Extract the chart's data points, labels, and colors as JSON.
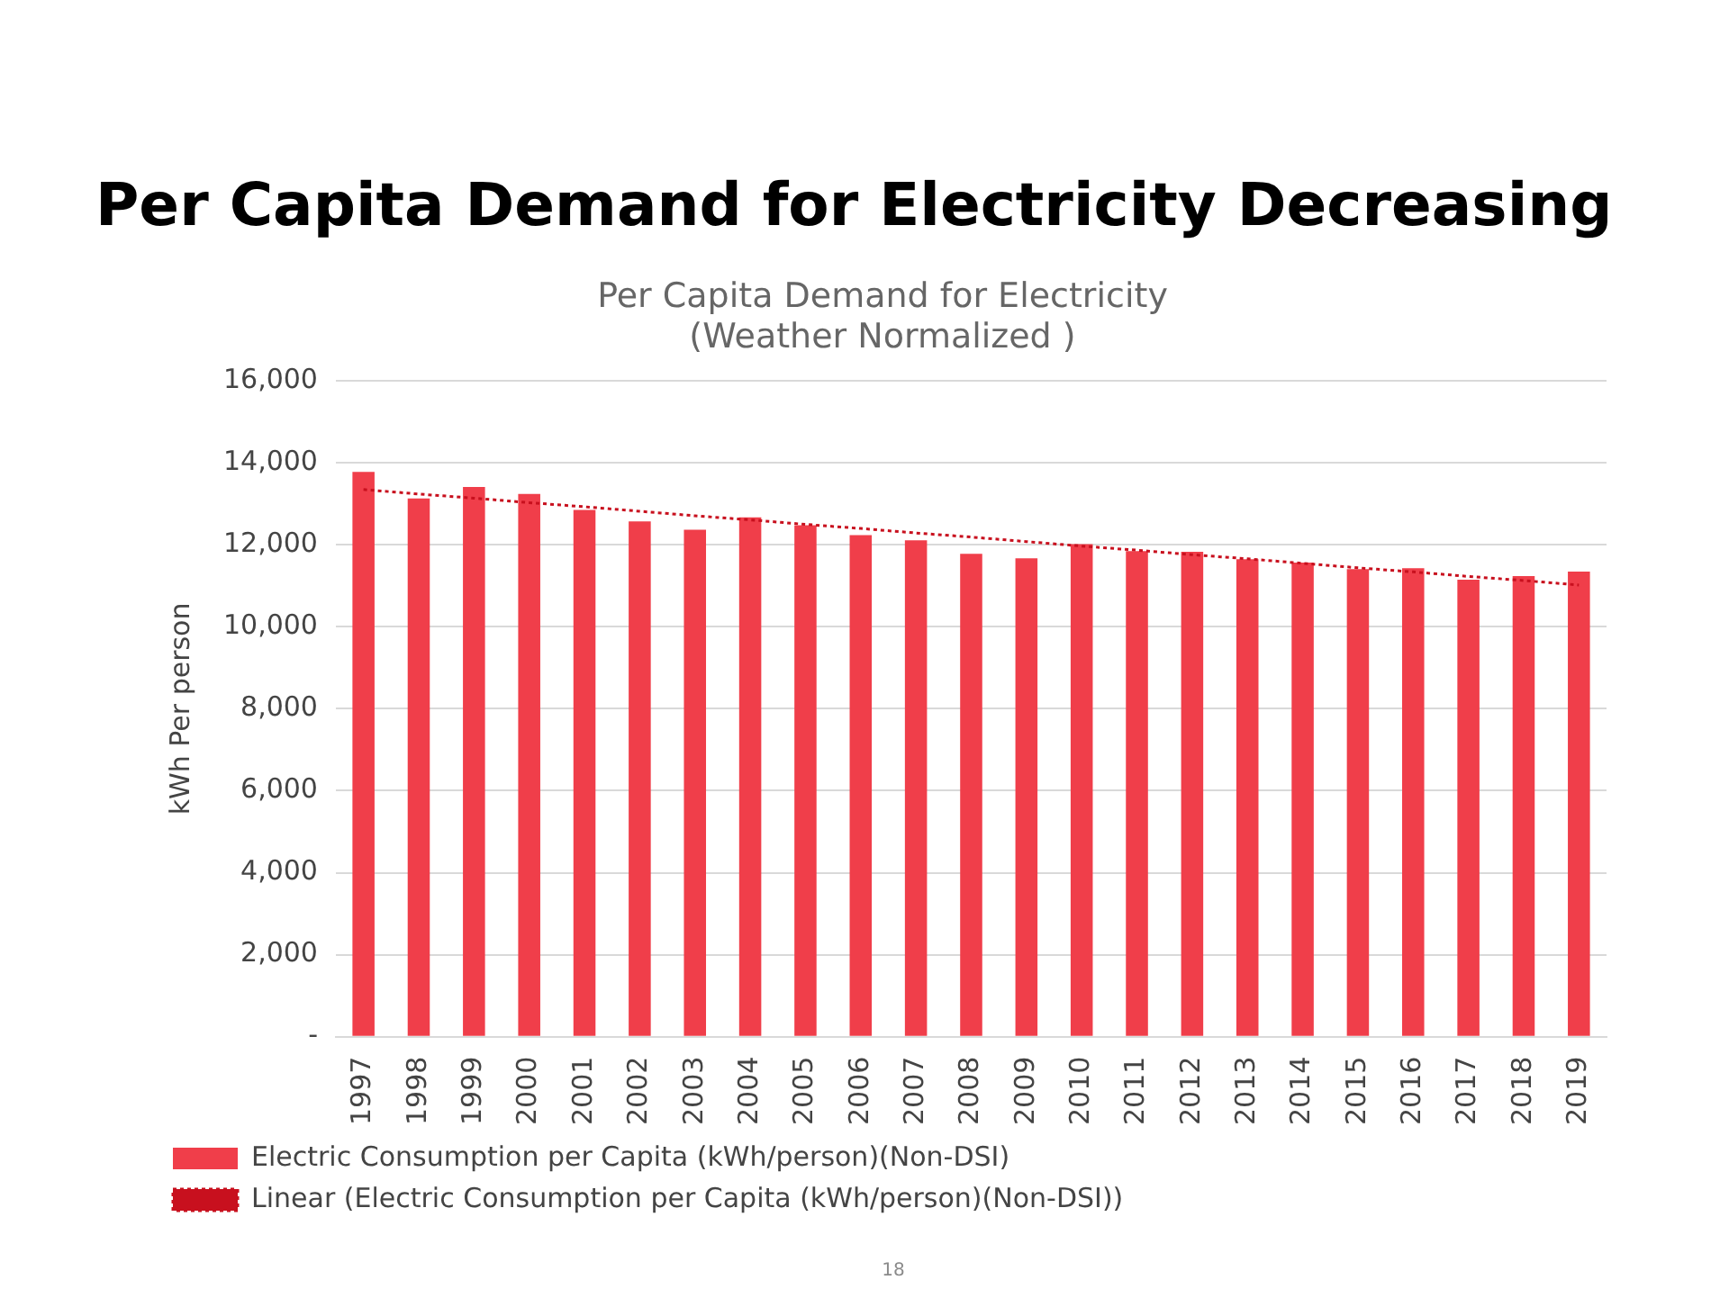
{
  "chart_data": {
    "type": "bar",
    "title": "Per Capita Demand for Electricity Decreasing",
    "subtitle": "Per Capita Demand for Electricity\n(Weather Normalized )",
    "ylabel": "kWh Per person",
    "categories": [
      "1997",
      "1998",
      "1999",
      "2000",
      "2001",
      "2002",
      "2003",
      "2004",
      "2005",
      "2006",
      "2007",
      "2008",
      "2009",
      "2010",
      "2011",
      "2012",
      "2013",
      "2014",
      "2015",
      "2016",
      "2017",
      "2018",
      "2019"
    ],
    "series": [
      {
        "name": "Electric Consumption per Capita (kWh/person)(Non-DSI)",
        "color": "#f03e4a",
        "values": [
          13780,
          13130,
          13410,
          13240,
          12850,
          12570,
          12370,
          12670,
          12480,
          12240,
          12110,
          11780,
          11670,
          12020,
          11850,
          11830,
          11650,
          11570,
          11410,
          11430,
          11150,
          11240,
          11350
        ]
      },
      {
        "name": "Linear (Electric Consumption per Capita (kWh/person)(Non-DSI))",
        "type": "line",
        "color": "#c8101e",
        "line_style": "dotted",
        "values": [
          13350,
          13240,
          13140,
          13030,
          12930,
          12820,
          12710,
          12610,
          12500,
          12400,
          12290,
          12190,
          12080,
          11970,
          11870,
          11760,
          11660,
          11550,
          11440,
          11340,
          11230,
          11130,
          11020
        ]
      }
    ],
    "ylim": [
      0,
      16000
    ],
    "yticks": [
      {
        "value": 0,
        "label": "-"
      },
      {
        "value": 2000,
        "label": "2,000"
      },
      {
        "value": 4000,
        "label": "4,000"
      },
      {
        "value": 6000,
        "label": "6,000"
      },
      {
        "value": 8000,
        "label": "8,000"
      },
      {
        "value": 10000,
        "label": "10,000"
      },
      {
        "value": 12000,
        "label": "12,000"
      },
      {
        "value": 14000,
        "label": "14,000"
      },
      {
        "value": 16000,
        "label": "16,000"
      }
    ],
    "grid": "y",
    "legend": "bottom",
    "annotations": [
      "18"
    ]
  }
}
